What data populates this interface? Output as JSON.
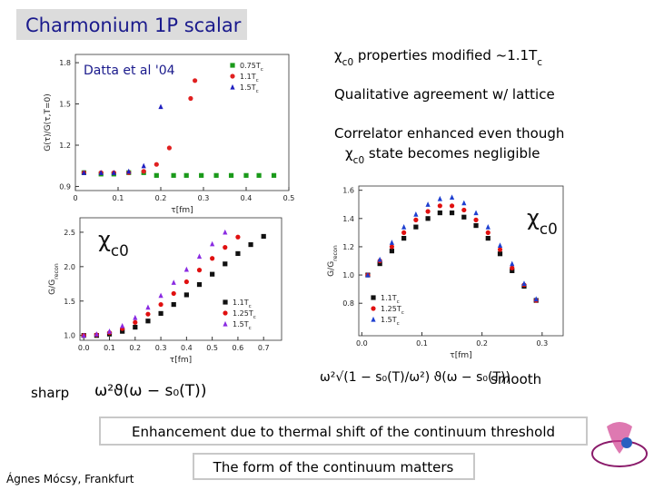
{
  "header": {
    "title": "Charmonium 1P scalar"
  },
  "bullets": [
    [
      "χ",
      "c0",
      " properties modified ~1.1T",
      "c"
    ],
    [
      "Qualitative agreement w/ lattice"
    ],
    [
      "Correlator enhanced even though"
    ],
    [
      "χ",
      "c0",
      " state becomes negligible"
    ]
  ],
  "labels": {
    "sharp": "sharp",
    "smooth": "smooth",
    "formula_sharp": "ω²ϑ(ω − s₀(T))",
    "formula_smooth": "ω²√(1 − s₀(T)/ω²) ϑ(ω − s₀(T))"
  },
  "footer": {
    "enhancement": "Enhancement due to thermal shift of the continuum threshold",
    "form": "The form of the continuum matters",
    "author": "Ágnes Mócsy, Frankfurt"
  },
  "chart_data": [
    {
      "type": "scatter",
      "ylabel": "G(τ)/G(τ,T=0)",
      "xlabel": "τ[fm]",
      "annotation": [
        "Datta et al '04"
      ],
      "xlim": [
        0,
        0.5
      ],
      "ylim": [
        0.87,
        1.86
      ],
      "xticks": [
        0,
        0.1,
        0.2,
        0.3,
        0.4,
        0.5
      ],
      "yticks": [
        0.9,
        1.2,
        1.5,
        1.8
      ],
      "legend": "upper right",
      "series": [
        {
          "name": [
            "0.75T",
            "c"
          ],
          "color": "#1a9a1a",
          "marker": "square",
          "x": [
            0.02,
            0.06,
            0.09,
            0.125,
            0.16,
            0.19,
            0.23,
            0.26,
            0.295,
            0.33,
            0.365,
            0.4,
            0.43,
            0.465
          ],
          "values": [
            1.0,
            0.99,
            0.99,
            1.0,
            1.0,
            0.98,
            0.98,
            0.98,
            0.98,
            0.98,
            0.98,
            0.98,
            0.98,
            0.98
          ]
        },
        {
          "name": [
            "1.1T",
            "c"
          ],
          "color": "#e02020",
          "marker": "circle",
          "x": [
            0.02,
            0.06,
            0.09,
            0.125,
            0.16,
            0.19,
            0.22,
            0.27,
            0.28
          ],
          "values": [
            1.0,
            1.0,
            1.0,
            1.0,
            1.01,
            1.06,
            1.18,
            1.54,
            1.67
          ]
        },
        {
          "name": [
            "1.5T",
            "c"
          ],
          "color": "#2020c0",
          "marker": "triangle",
          "x": [
            0.02,
            0.06,
            0.09,
            0.125,
            0.16,
            0.2
          ],
          "values": [
            1.0,
            1.0,
            1.0,
            1.01,
            1.05,
            1.48
          ]
        }
      ]
    },
    {
      "type": "scatter",
      "ylabel": [
        "G/G",
        "recon"
      ],
      "xlabel": "τ[fm]",
      "annotation": [
        "χ",
        "c0"
      ],
      "xlim": [
        -0.015,
        0.77
      ],
      "ylim": [
        0.93,
        2.71
      ],
      "xticks": [
        {
          "value": 0,
          "label": "0.0"
        },
        0.1,
        0.2,
        0.3,
        0.4,
        0.5,
        0.6,
        0.7
      ],
      "yticks": [
        {
          "value": 1,
          "label": "1.0"
        },
        1.5,
        {
          "value": 2,
          "label": "2.0"
        },
        2.5
      ],
      "legend": "lower right",
      "series": [
        {
          "name": [
            "1.1T",
            "c"
          ],
          "color": "#111111",
          "marker": "square",
          "x": [
            0,
            0.05,
            0.1,
            0.15,
            0.2,
            0.25,
            0.3,
            0.35,
            0.4,
            0.45,
            0.5,
            0.55,
            0.6,
            0.65,
            0.7
          ],
          "values": [
            1.0,
            1.0,
            1.02,
            1.06,
            1.12,
            1.21,
            1.32,
            1.45,
            1.59,
            1.74,
            1.89,
            2.04,
            2.19,
            2.32,
            2.44
          ]
        },
        {
          "name": [
            "1.25T",
            "c"
          ],
          "color": "#e01010",
          "marker": "circle",
          "x": [
            0,
            0.05,
            0.1,
            0.15,
            0.2,
            0.25,
            0.3,
            0.35,
            0.4,
            0.45,
            0.5,
            0.55,
            0.6
          ],
          "values": [
            1.0,
            1.01,
            1.04,
            1.1,
            1.19,
            1.31,
            1.45,
            1.61,
            1.78,
            1.95,
            2.12,
            2.28,
            2.43
          ]
        },
        {
          "name": [
            "1.5T",
            "c"
          ],
          "color": "#8a2be2",
          "marker": "triangle",
          "x": [
            0,
            0.05,
            0.1,
            0.15,
            0.2,
            0.25,
            0.3,
            0.35,
            0.4,
            0.45,
            0.5,
            0.55
          ],
          "values": [
            1.0,
            1.02,
            1.06,
            1.14,
            1.26,
            1.41,
            1.58,
            1.77,
            1.96,
            2.15,
            2.33,
            2.5
          ]
        }
      ]
    },
    {
      "type": "scatter",
      "ylabel": [
        "G/G",
        "recon"
      ],
      "xlabel": "τ[fm]",
      "annotation": [
        "χ",
        "c0"
      ],
      "xlim": [
        -0.005,
        0.335
      ],
      "ylim": [
        0.57,
        1.63
      ],
      "xticks": [
        {
          "value": 0,
          "label": "0.0"
        },
        0.1,
        0.2,
        0.3
      ],
      "yticks": [
        0.8,
        {
          "value": 1,
          "label": "1.0"
        },
        1.2,
        1.4,
        1.6
      ],
      "legend": "lower left",
      "series": [
        {
          "name": [
            "1.1T",
            "c"
          ],
          "color": "#111111",
          "marker": "square",
          "x": [
            0.01,
            0.03,
            0.05,
            0.07,
            0.09,
            0.11,
            0.13,
            0.15,
            0.17,
            0.19,
            0.21,
            0.23,
            0.25,
            0.27,
            0.29
          ],
          "values": [
            1.0,
            1.08,
            1.17,
            1.26,
            1.34,
            1.4,
            1.44,
            1.44,
            1.41,
            1.35,
            1.26,
            1.15,
            1.03,
            0.92,
            0.82
          ]
        },
        {
          "name": [
            "1.25T",
            "c"
          ],
          "color": "#e01010",
          "marker": "circle",
          "x": [
            0.01,
            0.03,
            0.05,
            0.07,
            0.09,
            0.11,
            0.13,
            0.15,
            0.17,
            0.19,
            0.21,
            0.23,
            0.25,
            0.27,
            0.29
          ],
          "values": [
            1.0,
            1.1,
            1.2,
            1.3,
            1.39,
            1.45,
            1.49,
            1.49,
            1.46,
            1.39,
            1.3,
            1.18,
            1.05,
            0.93,
            0.82
          ]
        },
        {
          "name": [
            "1.5T",
            "c"
          ],
          "color": "#1e3fd0",
          "marker": "triangle",
          "x": [
            0.01,
            0.03,
            0.05,
            0.07,
            0.09,
            0.11,
            0.13,
            0.15,
            0.17,
            0.19,
            0.21,
            0.23,
            0.25,
            0.27,
            0.29
          ],
          "values": [
            1.0,
            1.11,
            1.23,
            1.34,
            1.43,
            1.5,
            1.54,
            1.55,
            1.51,
            1.44,
            1.34,
            1.21,
            1.08,
            0.94,
            0.83
          ]
        }
      ]
    }
  ]
}
